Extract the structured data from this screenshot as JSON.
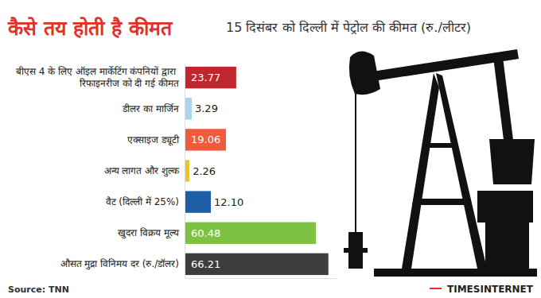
{
  "chart_data": {
    "type": "bar",
    "orientation": "horizontal",
    "title": "कैसे तय होती है कीमत",
    "subtitle": "15 दिसंबर को दिल्ली में पेट्रोल की कीमत (रु./लीटर)",
    "categories": [
      "बीएस 4 के लिए ऑइल मार्केटिंग कंपनियों द्वारा रिफाइनरीज को दी गई कीमत",
      "डीलर का मार्जिन",
      "एक्साइज ड्यूटी",
      "अन्य लागत और शुल्क",
      "वैट (दिल्ली में 25%)",
      "खुदरा विक्रय मूल्य",
      "औसत मुद्रा विनिमय दर (रु./डॉलर)"
    ],
    "values": [
      23.77,
      3.29,
      19.06,
      2.26,
      12.1,
      60.48,
      66.21
    ],
    "value_labels": [
      "23.77",
      "3.29",
      "19.06",
      "2.26",
      "12.10",
      "60.48",
      "66.21"
    ],
    "colors": [
      "#c0272d",
      "#a9d6ef",
      "#ef5b3d",
      "#f3c31a",
      "#1d5fa6",
      "#7dc242",
      "#3d3d3d"
    ],
    "xlim": [
      0,
      70
    ],
    "data_labels": true,
    "tick_labels": "y",
    "grid": false,
    "source": "Source: TNN",
    "credit": "TIMESINTERNET"
  }
}
